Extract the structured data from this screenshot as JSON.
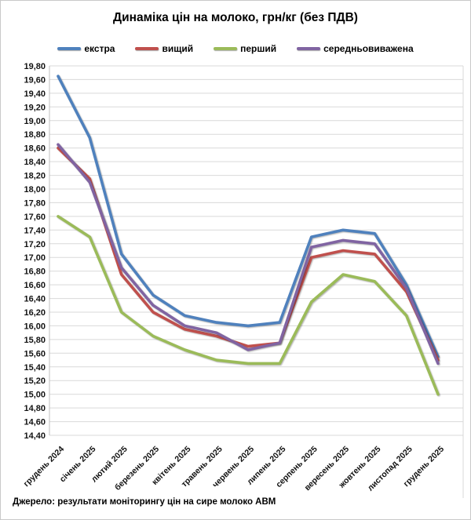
{
  "figure": {
    "title": "Динаміка цін на молоко, грн/кг (без ПДВ)",
    "source": "Джерело: результати моніторингу цін на сире молоко АВМ"
  },
  "chart_data": {
    "type": "line",
    "title": "Динаміка цін на молоко, грн/кг (без ПДВ)",
    "categories": [
      "грудень 2024",
      "січень 2025",
      "лютий 2025",
      "березень 2025",
      "квітень 2025",
      "травень 2025",
      "червень 2025",
      "липень 2025",
      "серпень 2025",
      "вересень 2025",
      "жовтень 2025",
      "листопад 2025",
      "грудень 2025"
    ],
    "series": [
      {
        "name": "екстра",
        "color": "#4F81BD",
        "values": [
          19.65,
          18.75,
          17.05,
          16.45,
          16.15,
          16.05,
          16.0,
          16.05,
          17.3,
          17.4,
          17.35,
          16.6,
          15.55
        ]
      },
      {
        "name": "вищий",
        "color": "#C0504D",
        "values": [
          18.6,
          18.15,
          16.75,
          16.2,
          15.95,
          15.85,
          15.7,
          15.75,
          17.0,
          17.1,
          17.05,
          16.5,
          15.5
        ]
      },
      {
        "name": "перший",
        "color": "#9BBB59",
        "values": [
          17.6,
          17.3,
          16.2,
          15.85,
          15.65,
          15.5,
          15.45,
          15.45,
          16.35,
          16.75,
          16.65,
          16.15,
          15.0
        ]
      },
      {
        "name": "середньовиважена",
        "color": "#8064A2",
        "values": [
          18.65,
          18.1,
          16.85,
          16.3,
          16.0,
          15.9,
          15.65,
          15.75,
          17.15,
          17.25,
          17.2,
          16.55,
          15.45
        ]
      }
    ],
    "xlabel": "",
    "ylabel": "",
    "ylim": [
      14.4,
      19.8
    ],
    "ytick_step": 0.2,
    "decimal_comma": true,
    "grid": true,
    "legend_position": "top",
    "source_note": "Джерело: результати моніторингу цін на сире молоко АВМ"
  }
}
